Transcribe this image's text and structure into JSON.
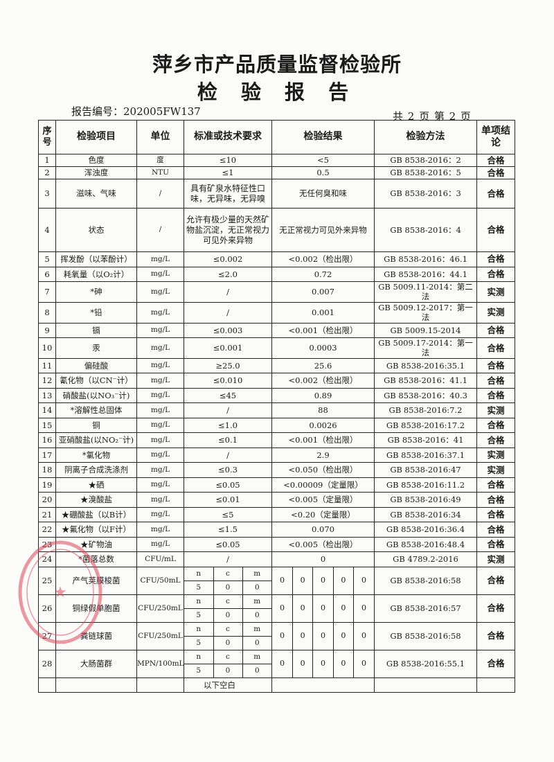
{
  "header": {
    "org": "萍乡市产品质量监督检验所",
    "doc_title": "检 验 报 告",
    "report_no": "报告编号：202005FW137",
    "page_info": "共 2 页  第 2 页"
  },
  "columns": [
    "序号",
    "检验项目",
    "单位",
    "标准或技术要求",
    "检验结果",
    "检验方法",
    "单项结论"
  ],
  "rows": [
    {
      "no": "1",
      "item": "色度",
      "unit": "度",
      "std": "≤10",
      "result": "<5",
      "method": "GB 8538-2016：2",
      "concl": "合格"
    },
    {
      "no": "2",
      "item": "浑浊度",
      "unit": "NTU",
      "std": "≤1",
      "result": "0.5",
      "method": "GB 8538-2016：5",
      "concl": "合格"
    },
    {
      "no": "3",
      "item": "滋味、气味",
      "unit": "/",
      "std": "具有矿泉水特征性口味，无异味，无异嗅",
      "result": "无任何臭和味",
      "method": "GB 8538-2016：3",
      "concl": "合格"
    },
    {
      "no": "4",
      "item": "状态",
      "unit": "/",
      "std": "允许有极少量的天然矿物盐沉淀，无正常视力可见外来异物",
      "result": "无正常视力可见外来异物",
      "method": "GB 8538-2016：4",
      "concl": "合格"
    },
    {
      "no": "5",
      "item": "挥发酚（以苯酚计）",
      "unit": "mg/L",
      "std": "≤0.002",
      "result": "<0.002（检出限）",
      "method": "GB 8538-2016：46.1",
      "concl": "合格"
    },
    {
      "no": "6",
      "item": "耗氧量（以O₂计）",
      "unit": "mg/L",
      "std": "≤2.0",
      "result": "0.72",
      "method": "GB 8538-2016：44.1",
      "concl": "合格"
    },
    {
      "no": "7",
      "item": "*砷",
      "unit": "mg/L",
      "std": "/",
      "result": "0.007",
      "method": "GB 5009.11-2014：第二法",
      "concl": "实测"
    },
    {
      "no": "8",
      "item": "*铅",
      "unit": "mg/L",
      "std": "/",
      "result": "0.001",
      "method": "GB 5009.12-2017：第一法",
      "concl": "实测"
    },
    {
      "no": "9",
      "item": "镉",
      "unit": "mg/L",
      "std": "≤0.003",
      "result": "<0.001（检出限）",
      "method": "GB 5009.15-2014",
      "concl": "合格"
    },
    {
      "no": "10",
      "item": "汞",
      "unit": "mg/L",
      "std": "≤0.001",
      "result": "0.0003",
      "method": "GB 5009.17-2014：第一法",
      "concl": "合格"
    },
    {
      "no": "11",
      "item": "偏硅酸",
      "unit": "mg/L",
      "std": "≥25.0",
      "result": "25.6",
      "method": "GB 8538-2016:35.1",
      "concl": "合格"
    },
    {
      "no": "12",
      "item": "氰化物（以CN⁻计）",
      "unit": "mg/L",
      "std": "≤0.010",
      "result": "<0.002（检出限）",
      "method": "GB 8538-2016：41.1",
      "concl": "合格"
    },
    {
      "no": "13",
      "item": "硝酸盐(以NO₃⁻计)",
      "unit": "mg/L",
      "std": "≤45",
      "result": "0.89",
      "method": "GB 8538-2016：40.3",
      "concl": "合格"
    },
    {
      "no": "14",
      "item": "*溶解性总固体",
      "unit": "mg/L",
      "std": "/",
      "result": "88",
      "method": "GB 8538-2016:7.2",
      "concl": "实测"
    },
    {
      "no": "15",
      "item": "铜",
      "unit": "mg/L",
      "std": "≤1.0",
      "result": "0.0026",
      "method": "GB 8538-2016:17.2",
      "concl": "合格"
    },
    {
      "no": "16",
      "item": "亚硝酸盐(以NO₂⁻计)",
      "unit": "mg/L",
      "std": "≤0.1",
      "result": "<0.001（检出限）",
      "method": "GB 8538-2016：41",
      "concl": "合格"
    },
    {
      "no": "17",
      "item": "*氯化物",
      "unit": "mg/L",
      "std": "/",
      "result": "2.9",
      "method": "GB 8538-2016:37.1",
      "concl": "实测"
    },
    {
      "no": "18",
      "item": "阴离子合成洗涤剂",
      "unit": "mg/L",
      "std": "≤0.3",
      "result": "<0.050（检出限）",
      "method": "GB 8538-2016:47",
      "concl": "实测"
    },
    {
      "no": "19",
      "item": "★硒",
      "unit": "mg/L",
      "std": "≤0.05",
      "result": "<0.00009（定量限）",
      "method": "GB 8538-2016:11.2",
      "concl": "合格"
    },
    {
      "no": "20",
      "item": "★溴酸盐",
      "unit": "mg/L",
      "std": "≤0.01",
      "result": "<0.005（定量限）",
      "method": "GB 8538-2016:49",
      "concl": "合格"
    },
    {
      "no": "21",
      "item": "★硼酸盐（以B计）",
      "unit": "mg/L",
      "std": "≤5",
      "result": "<0.20（定量限）",
      "method": "GB 8538-2016:34",
      "concl": "合格"
    },
    {
      "no": "22",
      "item": "★氟化物（以F计）",
      "unit": "mg/L",
      "std": "≤1.5",
      "result": "0.070",
      "method": "GB 8538-2016:36.4",
      "concl": "合格"
    },
    {
      "no": "23",
      "item": "★矿物油",
      "unit": "mg/L",
      "std": "≤0.05",
      "result": "<0.005（检出限）",
      "method": "GB 8538-2016:48.4",
      "concl": "合格"
    },
    {
      "no": "24",
      "item": "*菌落总数",
      "unit": "CFU/mL",
      "std": "/",
      "result": "0",
      "method": "GB 4789.2-2016",
      "concl": "实测"
    }
  ],
  "micro_rows": [
    {
      "no": "25",
      "item": "产气荚膜梭菌",
      "unit": "CFU/50mL",
      "std_head": [
        "n",
        "c",
        "m"
      ],
      "std_vals": [
        "5",
        "0",
        "0"
      ],
      "results": [
        "0",
        "0",
        "0",
        "0",
        "0"
      ],
      "method": "GB 8538-2016:58",
      "concl": "合格"
    },
    {
      "no": "26",
      "item": "铜绿假单胞菌",
      "unit": "CFU/250mL",
      "std_head": [
        "n",
        "c",
        "m"
      ],
      "std_vals": [
        "5",
        "0",
        "0"
      ],
      "results": [
        "0",
        "0",
        "0",
        "0",
        "0"
      ],
      "method": "GB 8538-2016:57",
      "concl": "合格"
    },
    {
      "no": "27",
      "item": "粪链球菌",
      "unit": "CFU/250mL",
      "std_head": [
        "n",
        "c",
        "m"
      ],
      "std_vals": [
        "5",
        "0",
        "0"
      ],
      "results": [
        "0",
        "0",
        "0",
        "0",
        "0"
      ],
      "method": "GB 8538-2016:58",
      "concl": "合格"
    },
    {
      "no": "28",
      "item": "大肠菌群",
      "unit": "MPN/100mL",
      "std_head": [
        "n",
        "c",
        "m"
      ],
      "std_vals": [
        "5",
        "0",
        "0"
      ],
      "results": [
        "0",
        "0",
        "0",
        "0",
        "0"
      ],
      "method": "GB 8538-2016:55.1",
      "concl": "合格"
    }
  ],
  "footer_row": {
    "note": "以下空白"
  },
  "colors": {
    "ink": "#1a1a1a",
    "stamp": "#d9485a",
    "paper": "#fbfbf9"
  }
}
